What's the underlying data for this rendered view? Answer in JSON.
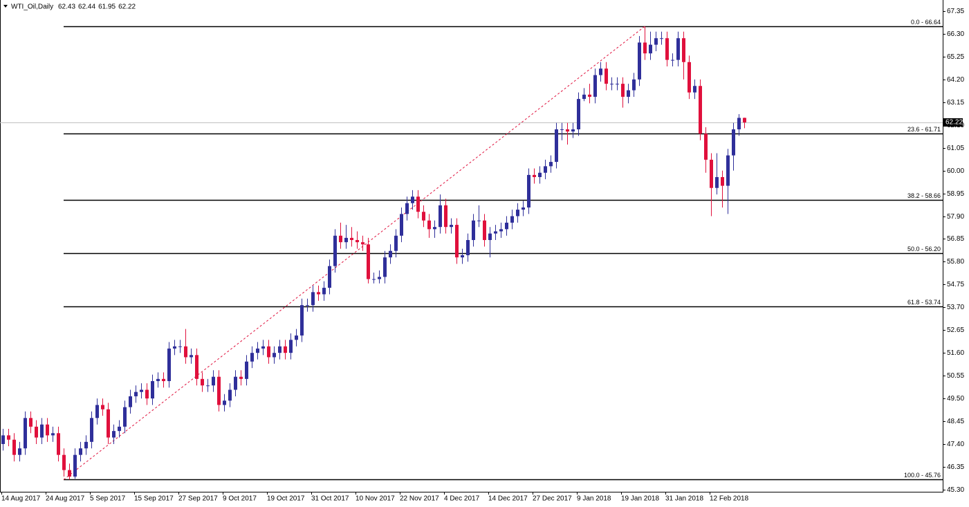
{
  "chart_data": {
    "type": "candlestick",
    "symbol": "WTI_Oil,Daily",
    "header_values": [
      62.43,
      62.44,
      61.95,
      62.22
    ],
    "last_price": 62.22,
    "up_color": "#2f2f9a",
    "down_color": "#e0103c",
    "ylim": [
      45.2,
      67.86
    ],
    "yticks": [
      67.35,
      {
        "value": 66.3,
        "label": "66.30"
      },
      65.25,
      {
        "value": 64.2,
        "label": "64.20"
      },
      63.15,
      {
        "value": 62.1,
        "label": "62.10"
      },
      61.05,
      {
        "value": 60,
        "label": "60.00"
      },
      58.95,
      {
        "value": 57.9,
        "label": "57.90"
      },
      56.85,
      {
        "value": 55.8,
        "label": "55.80"
      },
      54.75,
      {
        "value": 53.7,
        "label": "53.70"
      },
      52.65,
      {
        "value": 51.6,
        "label": "51.60"
      },
      50.55,
      {
        "value": 49.5,
        "label": "49.50"
      },
      48.45,
      {
        "value": 47.4,
        "label": "47.40"
      },
      46.35,
      {
        "value": 45.3,
        "label": "45.30"
      }
    ],
    "fib_levels": [
      {
        "value": 66.64,
        "label": "0.0 - 66.64"
      },
      {
        "value": 61.71,
        "label": "23.6 - 61.71"
      },
      {
        "value": 58.66,
        "label": "38.2 - 58.66"
      },
      {
        "value": 56.2,
        "label": "50.0 - 56.20"
      },
      {
        "value": 53.74,
        "label": "61.8 - 53.74"
      },
      {
        "value": 45.76,
        "label": "100.0 - 45.76"
      }
    ],
    "categories": [
      "14 Aug 2017",
      null,
      null,
      null,
      null,
      null,
      null,
      null,
      "24 Aug 2017",
      null,
      null,
      null,
      null,
      null,
      null,
      null,
      "5 Sep 2017",
      null,
      null,
      null,
      null,
      null,
      null,
      null,
      "15 Sep 2017",
      null,
      null,
      null,
      null,
      null,
      null,
      null,
      "27 Sep 2017",
      null,
      null,
      null,
      null,
      null,
      null,
      null,
      "9 Oct 2017",
      null,
      null,
      null,
      null,
      null,
      null,
      null,
      "19 Oct 2017",
      null,
      null,
      null,
      null,
      null,
      null,
      null,
      "31 Oct 2017",
      null,
      null,
      null,
      null,
      null,
      null,
      null,
      "10 Nov 2017",
      null,
      null,
      null,
      null,
      null,
      null,
      null,
      "22 Nov 2017",
      null,
      null,
      null,
      null,
      null,
      null,
      null,
      "4 Dec 2017",
      null,
      null,
      null,
      null,
      null,
      null,
      null,
      "14 Dec 2017",
      null,
      null,
      null,
      null,
      null,
      null,
      null,
      "27 Dec 2017",
      null,
      null,
      null,
      null,
      null,
      null,
      null,
      "9 Jan 2018",
      null,
      null,
      null,
      null,
      null,
      null,
      null,
      "19 Jan 2018",
      null,
      null,
      null,
      null,
      null,
      null,
      null,
      "31 Jan 2018",
      null,
      null,
      null,
      null,
      null,
      null,
      null,
      "12 Feb 2018",
      null,
      null,
      null,
      null,
      null,
      null
    ],
    "open": [
      47.4,
      47.8,
      47.6,
      46.9,
      47.2,
      48.6,
      48.2,
      47.7,
      48.3,
      47.8,
      47.9,
      46.9,
      46.2,
      45.9,
      46.9,
      47.2,
      47.5,
      48.6,
      49.2,
      49.0,
      47.7,
      48.0,
      48.2,
      49.1,
      49.6,
      49.8,
      49.9,
      49.5,
      50.3,
      50.4,
      50.3,
      51.8,
      51.9,
      51.9,
      51.4,
      51.5,
      50.4,
      50.1,
      50.1,
      50.5,
      49.2,
      49.4,
      49.9,
      50.5,
      50.4,
      51.2,
      51.6,
      51.8,
      51.9,
      51.4,
      51.6,
      51.9,
      51.6,
      52.2,
      52.4,
      53.8,
      53.8,
      54.4,
      54.3,
      54.6,
      55.6,
      57.0,
      56.7,
      56.9,
      56.8,
      56.7,
      56.6,
      55.0,
      55.0,
      55.1,
      56.0,
      56.3,
      57.0,
      58.0,
      58.5,
      58.8,
      58.1,
      57.7,
      57.3,
      57.4,
      58.4,
      57.4,
      57.5,
      56.0,
      56.1,
      56.8,
      57.7,
      57.7,
      56.8,
      57.1,
      57.2,
      57.3,
      57.6,
      57.9,
      58.2,
      58.3,
      59.8,
      59.7,
      59.9,
      60.2,
      60.4,
      61.9,
      61.9,
      61.8,
      61.9,
      63.3,
      63.5,
      63.4,
      64.4,
      64.7,
      64.0,
      64.0,
      64.0,
      63.4,
      63.7,
      64.2,
      65.9,
      65.4,
      65.8,
      66.1,
      66.1,
      65.1,
      65.1,
      66.1,
      65.0,
      63.6,
      63.9,
      61.7,
      60.5,
      59.2,
      59.7,
      59.3,
      60.7,
      61.9,
      62.43
    ],
    "high": [
      48.1,
      48.1,
      47.9,
      47.5,
      48.9,
      48.9,
      48.5,
      48.6,
      48.6,
      48.2,
      48.2,
      47.2,
      46.5,
      47.2,
      47.5,
      47.8,
      48.9,
      49.5,
      49.5,
      49.3,
      48.3,
      48.5,
      49.4,
      49.9,
      50.1,
      50.2,
      50.2,
      50.6,
      50.7,
      50.7,
      52.1,
      52.2,
      52.2,
      52.7,
      51.8,
      51.8,
      50.7,
      50.4,
      50.8,
      50.8,
      49.7,
      50.2,
      50.8,
      50.8,
      51.5,
      51.9,
      52.1,
      52.2,
      52.2,
      51.9,
      52.2,
      52.2,
      52.5,
      52.7,
      54.1,
      54.1,
      54.7,
      54.7,
      54.9,
      55.9,
      57.3,
      57.6,
      57.5,
      57.4,
      57.2,
      57.0,
      56.9,
      55.3,
      55.4,
      56.3,
      56.6,
      57.3,
      58.3,
      58.8,
      59.1,
      59.1,
      58.4,
      58.0,
      57.7,
      58.9,
      58.7,
      57.8,
      57.8,
      56.4,
      57.1,
      58.0,
      58.4,
      58.0,
      57.4,
      57.5,
      57.6,
      57.9,
      58.2,
      58.5,
      58.6,
      60.1,
      60.1,
      60.2,
      60.5,
      60.7,
      62.2,
      62.2,
      62.2,
      62.2,
      63.6,
      63.8,
      64.0,
      64.7,
      65.0,
      65.0,
      64.3,
      64.3,
      64.3,
      64.0,
      64.5,
      66.2,
      66.64,
      66.4,
      66.4,
      66.4,
      66.4,
      65.4,
      66.4,
      66.4,
      65.3,
      64.2,
      64.2,
      62.0,
      60.8,
      60.8,
      60.0,
      61.0,
      62.2,
      62.6,
      62.44
    ],
    "low": [
      47.1,
      47.3,
      46.6,
      46.6,
      46.9,
      47.9,
      47.4,
      47.4,
      47.5,
      47.5,
      46.6,
      45.9,
      45.76,
      45.8,
      46.6,
      46.9,
      47.2,
      48.3,
      48.7,
      47.4,
      47.4,
      47.7,
      47.9,
      48.8,
      49.3,
      49.5,
      49.2,
      49.2,
      50.0,
      50.0,
      50.0,
      51.5,
      51.6,
      51.1,
      51.1,
      50.1,
      49.8,
      49.8,
      49.8,
      48.9,
      48.9,
      49.1,
      49.6,
      50.1,
      50.1,
      50.9,
      51.3,
      51.5,
      51.1,
      51.1,
      51.3,
      51.3,
      51.3,
      51.9,
      52.1,
      53.5,
      53.5,
      54.0,
      54.0,
      54.3,
      55.3,
      56.4,
      56.4,
      56.5,
      56.4,
      56.3,
      54.8,
      54.8,
      54.8,
      54.8,
      55.7,
      56.0,
      56.7,
      57.7,
      58.2,
      57.8,
      57.4,
      56.9,
      56.9,
      57.1,
      57.1,
      57.1,
      55.7,
      55.7,
      55.8,
      56.5,
      57.4,
      56.5,
      56.0,
      56.8,
      56.9,
      57.0,
      57.3,
      57.6,
      57.9,
      58.0,
      59.4,
      59.4,
      59.6,
      59.9,
      60.1,
      61.4,
      61.2,
      61.5,
      61.6,
      63.2,
      63.1,
      63.1,
      64.1,
      63.7,
      63.7,
      63.7,
      62.9,
      63.1,
      63.4,
      63.9,
      65.1,
      65.1,
      65.5,
      65.8,
      64.8,
      64.8,
      64.8,
      64.2,
      63.3,
      63.3,
      61.4,
      59.9,
      57.9,
      58.9,
      58.3,
      58.0,
      60.0,
      61.6,
      61.95
    ],
    "close": [
      47.8,
      47.6,
      46.9,
      47.2,
      48.6,
      48.2,
      47.7,
      48.3,
      47.8,
      47.9,
      46.9,
      46.2,
      45.9,
      46.9,
      47.2,
      47.5,
      48.6,
      49.2,
      49.0,
      47.7,
      48.0,
      48.2,
      49.1,
      49.6,
      49.8,
      49.9,
      49.5,
      50.3,
      50.4,
      50.3,
      51.8,
      51.9,
      51.9,
      51.4,
      51.5,
      50.4,
      50.1,
      50.1,
      50.5,
      49.2,
      49.4,
      49.9,
      50.5,
      50.4,
      51.2,
      51.6,
      51.8,
      51.9,
      51.4,
      51.6,
      51.9,
      51.6,
      52.2,
      52.4,
      53.8,
      53.8,
      54.4,
      54.3,
      54.6,
      55.6,
      57.0,
      56.7,
      56.9,
      56.8,
      56.7,
      56.6,
      55.0,
      55.0,
      55.1,
      56.0,
      56.3,
      57.0,
      58.0,
      58.5,
      58.8,
      58.1,
      57.7,
      57.3,
      57.4,
      58.4,
      57.4,
      57.5,
      56.0,
      56.1,
      56.8,
      57.7,
      57.7,
      56.8,
      57.1,
      57.2,
      57.3,
      57.6,
      57.9,
      58.2,
      58.3,
      59.8,
      59.7,
      59.9,
      60.2,
      60.4,
      61.9,
      61.9,
      61.8,
      61.9,
      63.3,
      63.5,
      63.4,
      64.4,
      64.7,
      64.0,
      64.0,
      64.0,
      63.4,
      63.7,
      64.2,
      65.9,
      65.4,
      65.8,
      66.1,
      66.1,
      65.1,
      65.1,
      66.1,
      65.0,
      63.6,
      63.9,
      61.7,
      60.5,
      59.2,
      59.7,
      59.3,
      60.7,
      61.9,
      62.43,
      62.22
    ]
  }
}
